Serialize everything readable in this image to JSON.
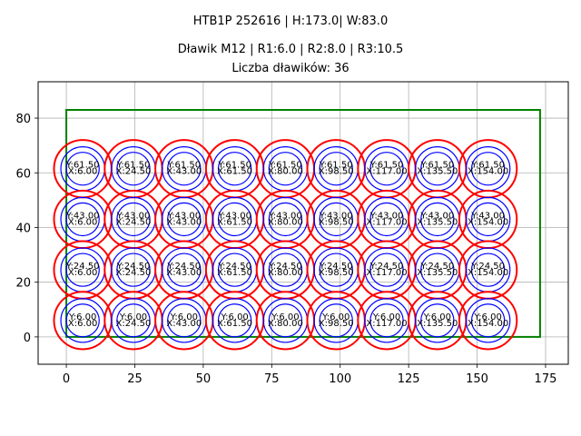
{
  "titles": {
    "line1": "HTB1P 252616 | H:173.0| W:83.0",
    "line2": "Dławik M12 | R1:6.0 | R2:8.0 | R3:10.5",
    "line3": "Liczba dławików: 36"
  },
  "colors": {
    "outer_circle": "#ff0000",
    "inner_circles": "#0000ff",
    "enclosure": "#008000",
    "grid": "#b0b0b0",
    "text": "#000000"
  },
  "chart_data": {
    "type": "scatter",
    "title": "HTB1P 252616 | H:173.0| W:83.0\nDławik M12 | R1:6.0 | R2:8.0 | R3:10.5\nLiczba dławików: 36",
    "xlabel": "",
    "ylabel": "",
    "xlim": [
      -10.3,
      183.3
    ],
    "ylim": [
      -10.0,
      93.3
    ],
    "xticks": [
      0,
      25,
      50,
      75,
      100,
      125,
      150,
      175
    ],
    "yticks": [
      0,
      20,
      40,
      60,
      80
    ],
    "grid": true,
    "enclosure": {
      "x": 0,
      "y": 0,
      "width": 173.0,
      "height": 83.0
    },
    "radii": {
      "R1": 6.0,
      "R2": 8.0,
      "R3": 10.5
    },
    "x_positions": [
      6.0,
      24.5,
      43.0,
      61.5,
      80.0,
      98.5,
      117.0,
      135.5,
      154.0
    ],
    "y_positions": [
      6.0,
      24.5,
      43.0,
      61.5
    ],
    "count": 36,
    "points": [
      {
        "x": 6.0,
        "y": 61.5,
        "label_x": "X:6.00",
        "label_y": "Y:61.50"
      },
      {
        "x": 24.5,
        "y": 61.5,
        "label_x": "X:24.50",
        "label_y": "Y:61.50"
      },
      {
        "x": 43.0,
        "y": 61.5,
        "label_x": "X:43.00",
        "label_y": "Y:61.50"
      },
      {
        "x": 61.5,
        "y": 61.5,
        "label_x": "X:61.50",
        "label_y": "Y:61.50"
      },
      {
        "x": 80.0,
        "y": 61.5,
        "label_x": "X:80.00",
        "label_y": "Y:61.50"
      },
      {
        "x": 98.5,
        "y": 61.5,
        "label_x": "X:98.50",
        "label_y": "Y:61.50"
      },
      {
        "x": 117.0,
        "y": 61.5,
        "label_x": "X:117.00",
        "label_y": "Y:61.50"
      },
      {
        "x": 135.5,
        "y": 61.5,
        "label_x": "X:135.50",
        "label_y": "Y:61.50"
      },
      {
        "x": 154.0,
        "y": 61.5,
        "label_x": "X:154.00",
        "label_y": "Y:61.50"
      },
      {
        "x": 6.0,
        "y": 43.0,
        "label_x": "X:6.00",
        "label_y": "Y:43.00"
      },
      {
        "x": 24.5,
        "y": 43.0,
        "label_x": "X:24.50",
        "label_y": "Y:43.00"
      },
      {
        "x": 43.0,
        "y": 43.0,
        "label_x": "X:43.00",
        "label_y": "Y:43.00"
      },
      {
        "x": 61.5,
        "y": 43.0,
        "label_x": "X:61.50",
        "label_y": "Y:43.00"
      },
      {
        "x": 80.0,
        "y": 43.0,
        "label_x": "X:80.00",
        "label_y": "Y:43.00"
      },
      {
        "x": 98.5,
        "y": 43.0,
        "label_x": "X:98.50",
        "label_y": "Y:43.00"
      },
      {
        "x": 117.0,
        "y": 43.0,
        "label_x": "X:117.00",
        "label_y": "Y:43.00"
      },
      {
        "x": 135.5,
        "y": 43.0,
        "label_x": "X:135.50",
        "label_y": "Y:43.00"
      },
      {
        "x": 154.0,
        "y": 43.0,
        "label_x": "X:154.00",
        "label_y": "Y:43.00"
      },
      {
        "x": 6.0,
        "y": 24.5,
        "label_x": "X:6.00",
        "label_y": "Y:24.50"
      },
      {
        "x": 24.5,
        "y": 24.5,
        "label_x": "X:24.50",
        "label_y": "Y:24.50"
      },
      {
        "x": 43.0,
        "y": 24.5,
        "label_x": "X:43.00",
        "label_y": "Y:24.50"
      },
      {
        "x": 61.5,
        "y": 24.5,
        "label_x": "X:61.50",
        "label_y": "Y:24.50"
      },
      {
        "x": 80.0,
        "y": 24.5,
        "label_x": "X:80.00",
        "label_y": "Y:24.50"
      },
      {
        "x": 98.5,
        "y": 24.5,
        "label_x": "X:98.50",
        "label_y": "Y:24.50"
      },
      {
        "x": 117.0,
        "y": 24.5,
        "label_x": "X:117.00",
        "label_y": "Y:24.50"
      },
      {
        "x": 135.5,
        "y": 24.5,
        "label_x": "X:135.50",
        "label_y": "Y:24.50"
      },
      {
        "x": 154.0,
        "y": 24.5,
        "label_x": "X:154.00",
        "label_y": "Y:24.50"
      },
      {
        "x": 6.0,
        "y": 6.0,
        "label_x": "X:6.00",
        "label_y": "Y:6.00"
      },
      {
        "x": 24.5,
        "y": 6.0,
        "label_x": "X:24.50",
        "label_y": "Y:6.00"
      },
      {
        "x": 43.0,
        "y": 6.0,
        "label_x": "X:43.00",
        "label_y": "Y:6.00"
      },
      {
        "x": 61.5,
        "y": 6.0,
        "label_x": "X:61.50",
        "label_y": "Y:6.00"
      },
      {
        "x": 80.0,
        "y": 6.0,
        "label_x": "X:80.00",
        "label_y": "Y:6.00"
      },
      {
        "x": 98.5,
        "y": 6.0,
        "label_x": "X:98.50",
        "label_y": "Y:6.00"
      },
      {
        "x": 117.0,
        "y": 6.0,
        "label_x": "X:117.00",
        "label_y": "Y:6.00"
      },
      {
        "x": 135.5,
        "y": 6.0,
        "label_x": "X:135.50",
        "label_y": "Y:6.00"
      },
      {
        "x": 154.0,
        "y": 6.0,
        "label_x": "X:154.00",
        "label_y": "Y:6.00"
      }
    ]
  }
}
